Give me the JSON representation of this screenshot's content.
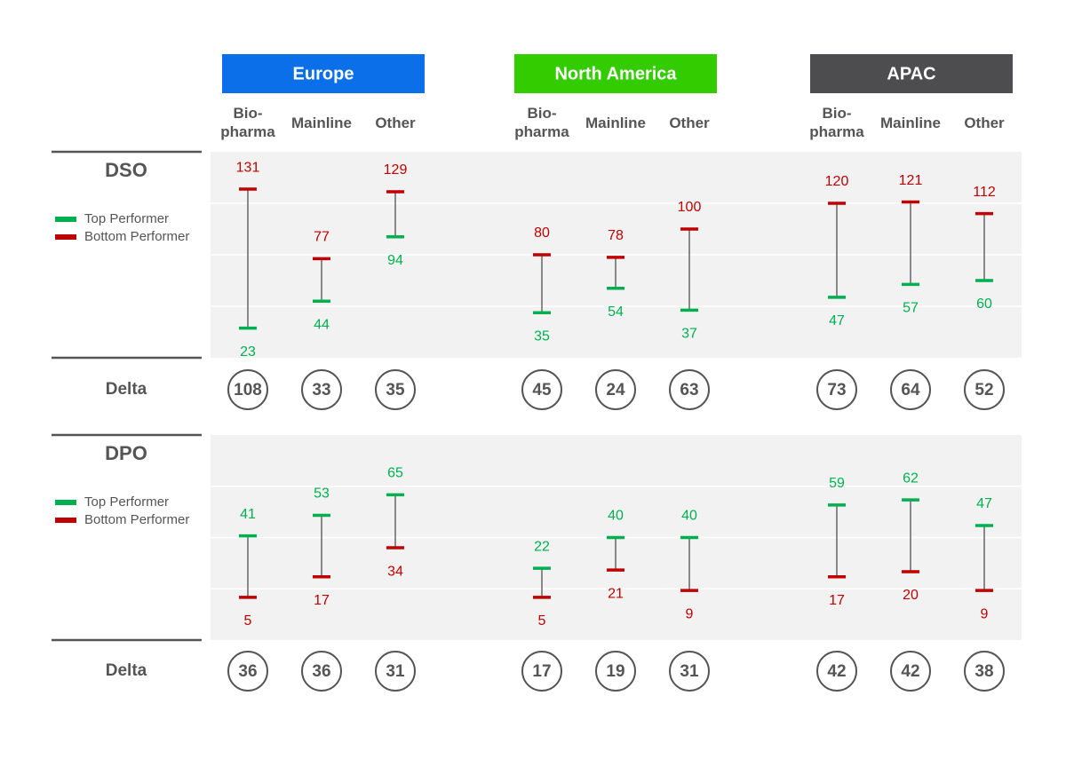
{
  "groups": [
    {
      "name": "Europe",
      "color": "#0a6fe8"
    },
    {
      "name": "North America",
      "color": "#33cc00"
    },
    {
      "name": "APAC",
      "color": "#4d4d4f"
    }
  ],
  "categories": [
    "Bio-pharma",
    "Mainline",
    "Other"
  ],
  "chart_data": [
    {
      "type": "range",
      "title": "DSO",
      "series": [
        {
          "name": "Top Performer",
          "color": "#00b050",
          "values": [
            23,
            44,
            94,
            35,
            54,
            37,
            47,
            57,
            60
          ]
        },
        {
          "name": "Bottom Performer",
          "color": "#c00000",
          "values": [
            131,
            77,
            129,
            80,
            78,
            100,
            120,
            121,
            112
          ]
        }
      ],
      "delta_label": "Delta",
      "deltas": [
        108,
        33,
        35,
        45,
        24,
        63,
        73,
        64,
        52
      ],
      "ylim": [
        0,
        160
      ],
      "yticks": [
        40,
        80,
        120
      ],
      "grid": true
    },
    {
      "type": "range",
      "title": "DPO",
      "series": [
        {
          "name": "Top Performer",
          "color": "#00b050",
          "values": [
            41,
            53,
            65,
            22,
            40,
            40,
            59,
            62,
            47
          ]
        },
        {
          "name": "Bottom Performer",
          "color": "#c00000",
          "values": [
            5,
            17,
            34,
            5,
            21,
            9,
            17,
            20,
            9
          ]
        }
      ],
      "delta_label": "Delta",
      "deltas": [
        36,
        36,
        31,
        17,
        19,
        31,
        42,
        42,
        38
      ],
      "ylim": [
        -20,
        100
      ],
      "yticks": [
        10,
        40,
        70
      ],
      "grid": true
    }
  ]
}
